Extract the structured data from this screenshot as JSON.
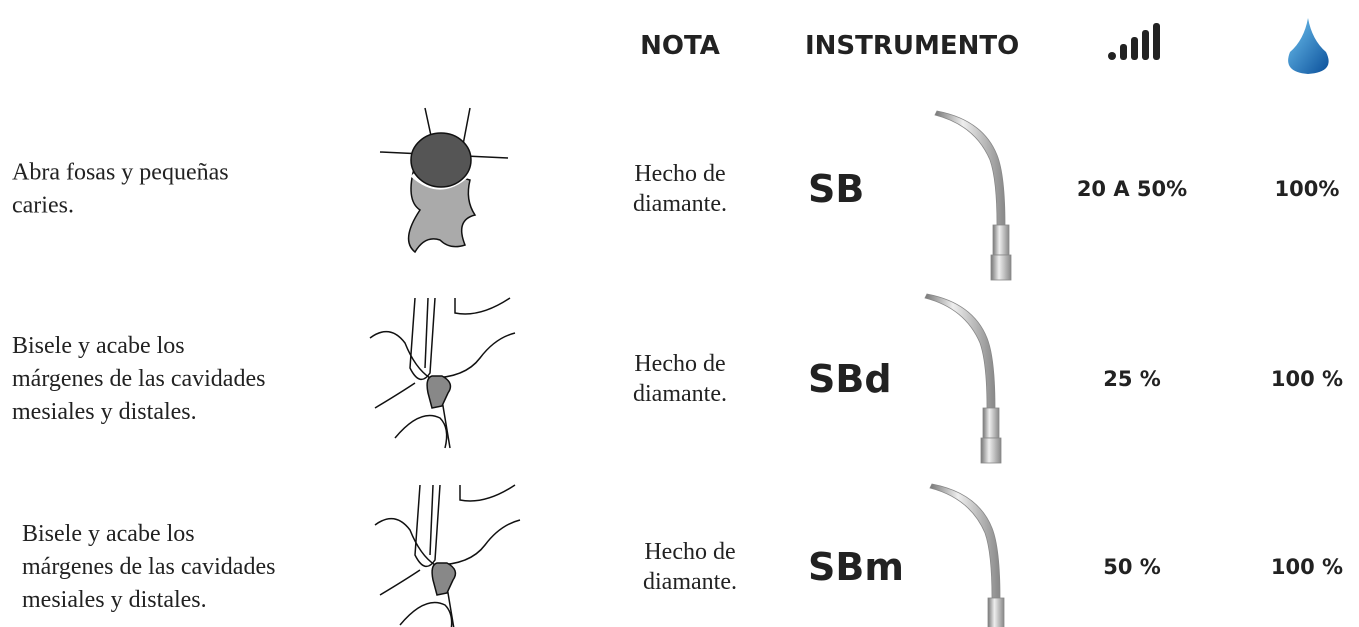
{
  "header": {
    "nota": "NOTA",
    "instrumento": "INSTRUMENTO"
  },
  "rows": [
    {
      "description": [
        "Abra fosas y pequeñas",
        "caries."
      ],
      "nota": [
        "Hecho de",
        "diamante."
      ],
      "instrument": "SB",
      "power": "20 A 50%",
      "water": "100%"
    },
    {
      "description": [
        "Bisele y acabe los",
        "márgenes de las cavidades",
        "mesiales y distales."
      ],
      "nota": [
        "Hecho de",
        "diamante."
      ],
      "instrument": "SBd",
      "power": "25 %",
      "water": "100 %"
    },
    {
      "description": [
        "Bisele y acabe los",
        "márgenes de las cavidades",
        "mesiales y distales."
      ],
      "nota": [
        "Hecho de",
        "diamante."
      ],
      "instrument": "SBm",
      "power": "50 %",
      "water": "100 %"
    }
  ]
}
